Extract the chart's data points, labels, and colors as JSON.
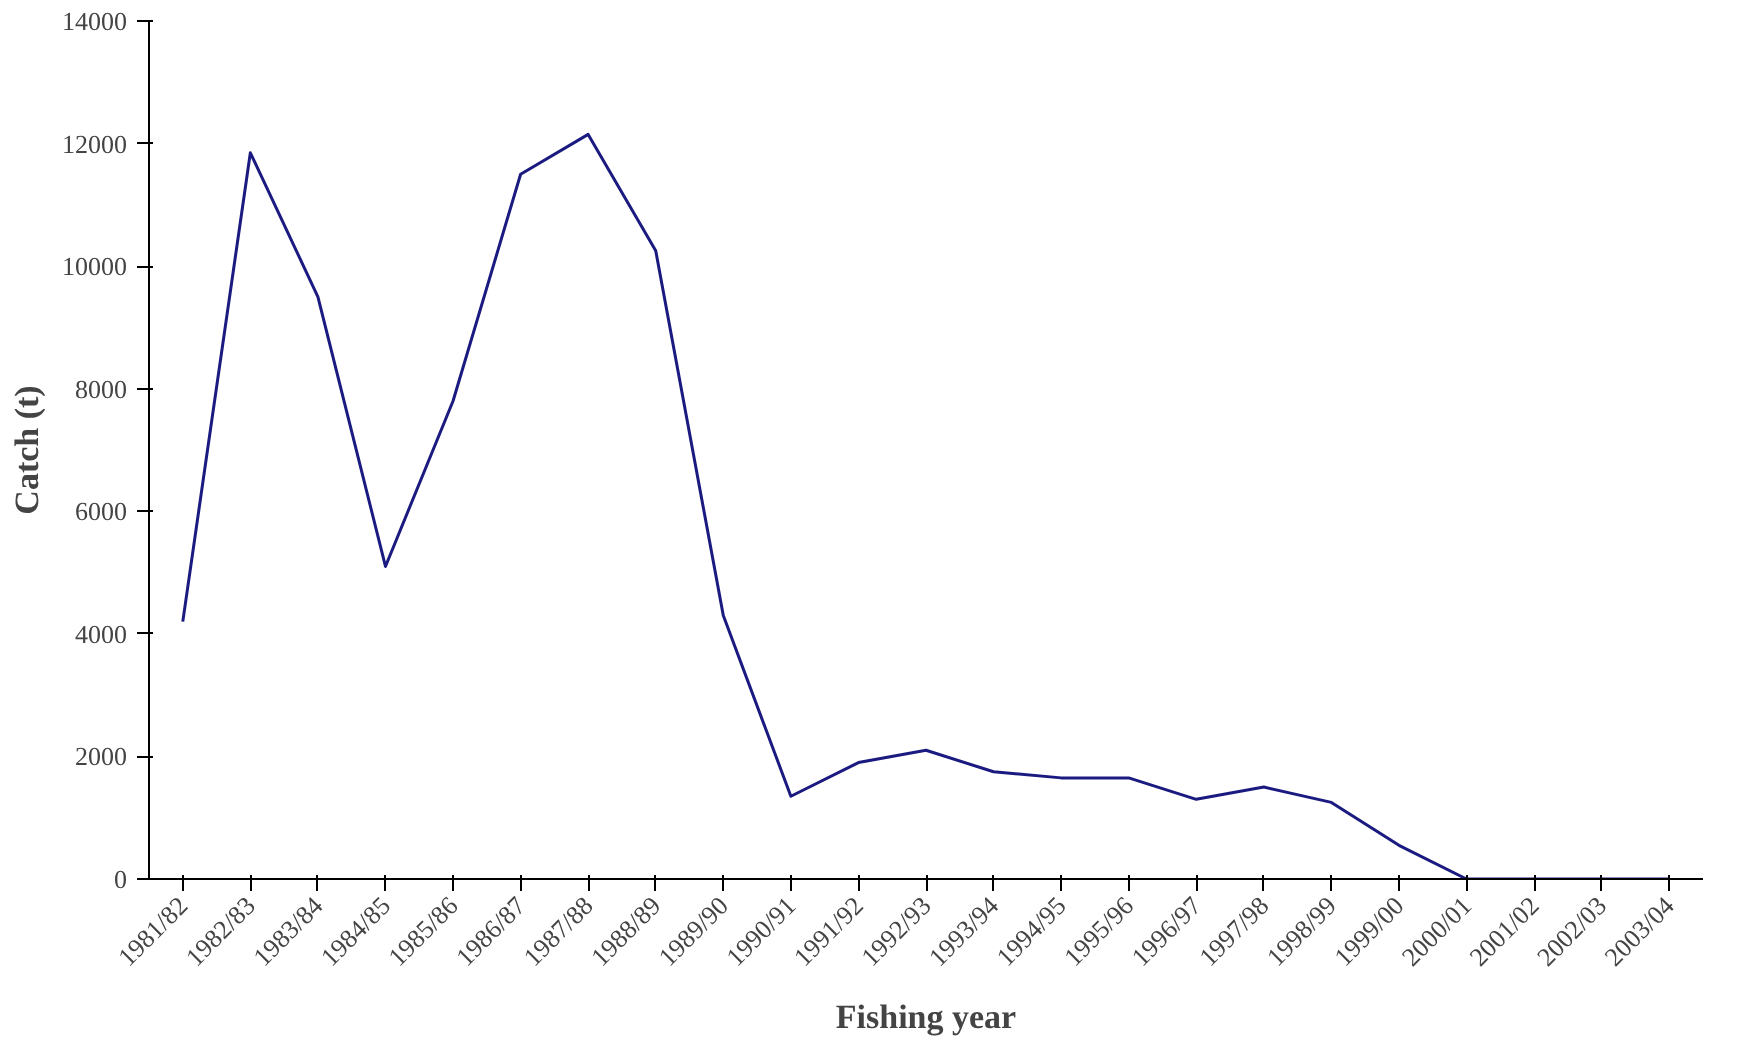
{
  "chart_data": {
    "type": "line",
    "xlabel": "Fishing year",
    "ylabel": "Catch (t)",
    "categories": [
      "1981/82",
      "1982/83",
      "1983/84",
      "1984/85",
      "1985/86",
      "1986/87",
      "1987/88",
      "1988/89",
      "1989/90",
      "1990/91",
      "1991/92",
      "1992/93",
      "1993/94",
      "1994/95",
      "1995/96",
      "1996/97",
      "1997/98",
      "1998/99",
      "1999/00",
      "2000/01",
      "2001/02",
      "2002/03",
      "2003/04"
    ],
    "series": [
      {
        "color": "#1a1a80",
        "values": [
          4200,
          11850,
          9500,
          5100,
          7800,
          11500,
          12150,
          10250,
          4300,
          1350,
          1900,
          2100,
          1750,
          1650,
          1650,
          1300,
          1500,
          1250,
          550,
          0,
          0,
          0,
          0
        ]
      }
    ],
    "ylim": [
      0,
      14000
    ],
    "yticks": [
      0,
      2000,
      4000,
      6000,
      8000,
      10000,
      12000,
      14000
    ],
    "marker": "none",
    "line_style": "solid"
  }
}
